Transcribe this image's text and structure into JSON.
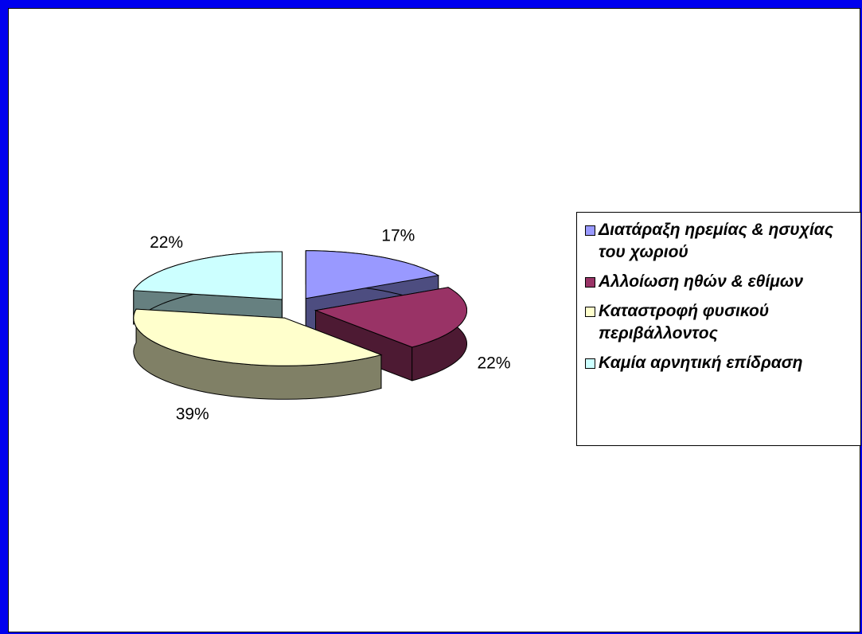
{
  "chart_data": {
    "type": "pie",
    "categories": [
      "Διατάραξη ηρεμίας & ησυχίας του χωριού",
      "Αλλοίωση ηθών & εθίμων",
      "Καταστροφή φυσικού περιβάλλοντος",
      "Καμία αρνητική επίδραση"
    ],
    "values": [
      17,
      22,
      39,
      22
    ],
    "value_labels": [
      "17%",
      "22%",
      "39%",
      "22%"
    ],
    "colors": [
      "#9999ff",
      "#993366",
      "#ffffcc",
      "#ccffff"
    ],
    "legend": "right"
  }
}
